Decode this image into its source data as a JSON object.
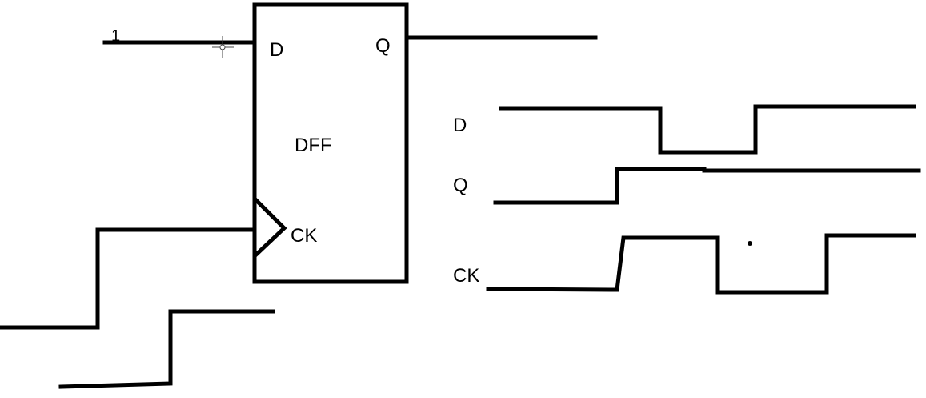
{
  "colors": {
    "background": "#ffffff",
    "ink": "#000000"
  },
  "flip_flop": {
    "name": "DFF",
    "pin_d": "D",
    "pin_q": "Q",
    "pin_ck": "CK",
    "d_input_value": "1"
  },
  "timing_diagram": {
    "signal_d_label": "D",
    "signal_q_label": "Q",
    "signal_ck_label": "CK"
  },
  "icons": {
    "cursor": "crosshair-cursor-icon"
  }
}
